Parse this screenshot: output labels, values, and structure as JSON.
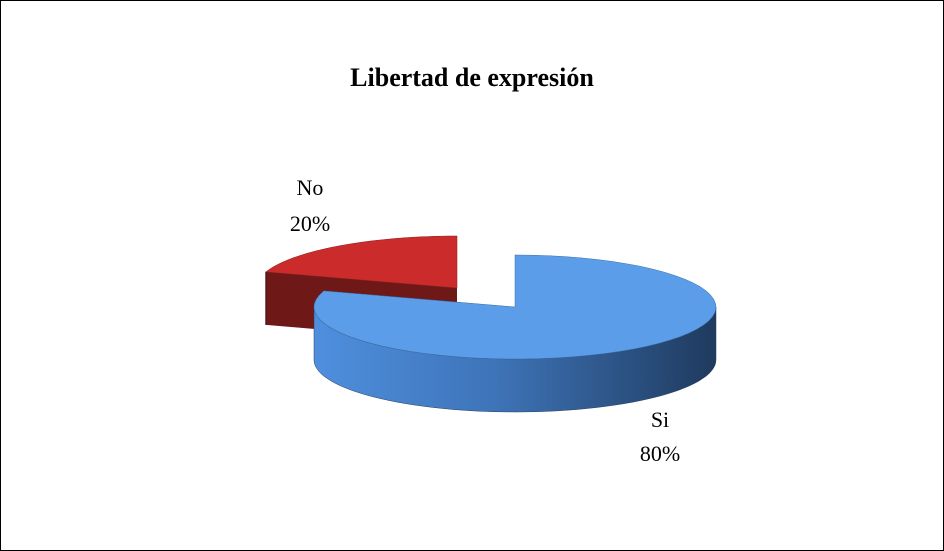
{
  "chart_data": {
    "type": "pie3d",
    "title": "Libertad de expresión",
    "categories": [
      "Si",
      "No"
    ],
    "values": [
      80,
      20
    ],
    "value_labels": [
      "80%",
      "20%"
    ],
    "colors": [
      "#5b9de8",
      "#cc2b2b"
    ]
  }
}
